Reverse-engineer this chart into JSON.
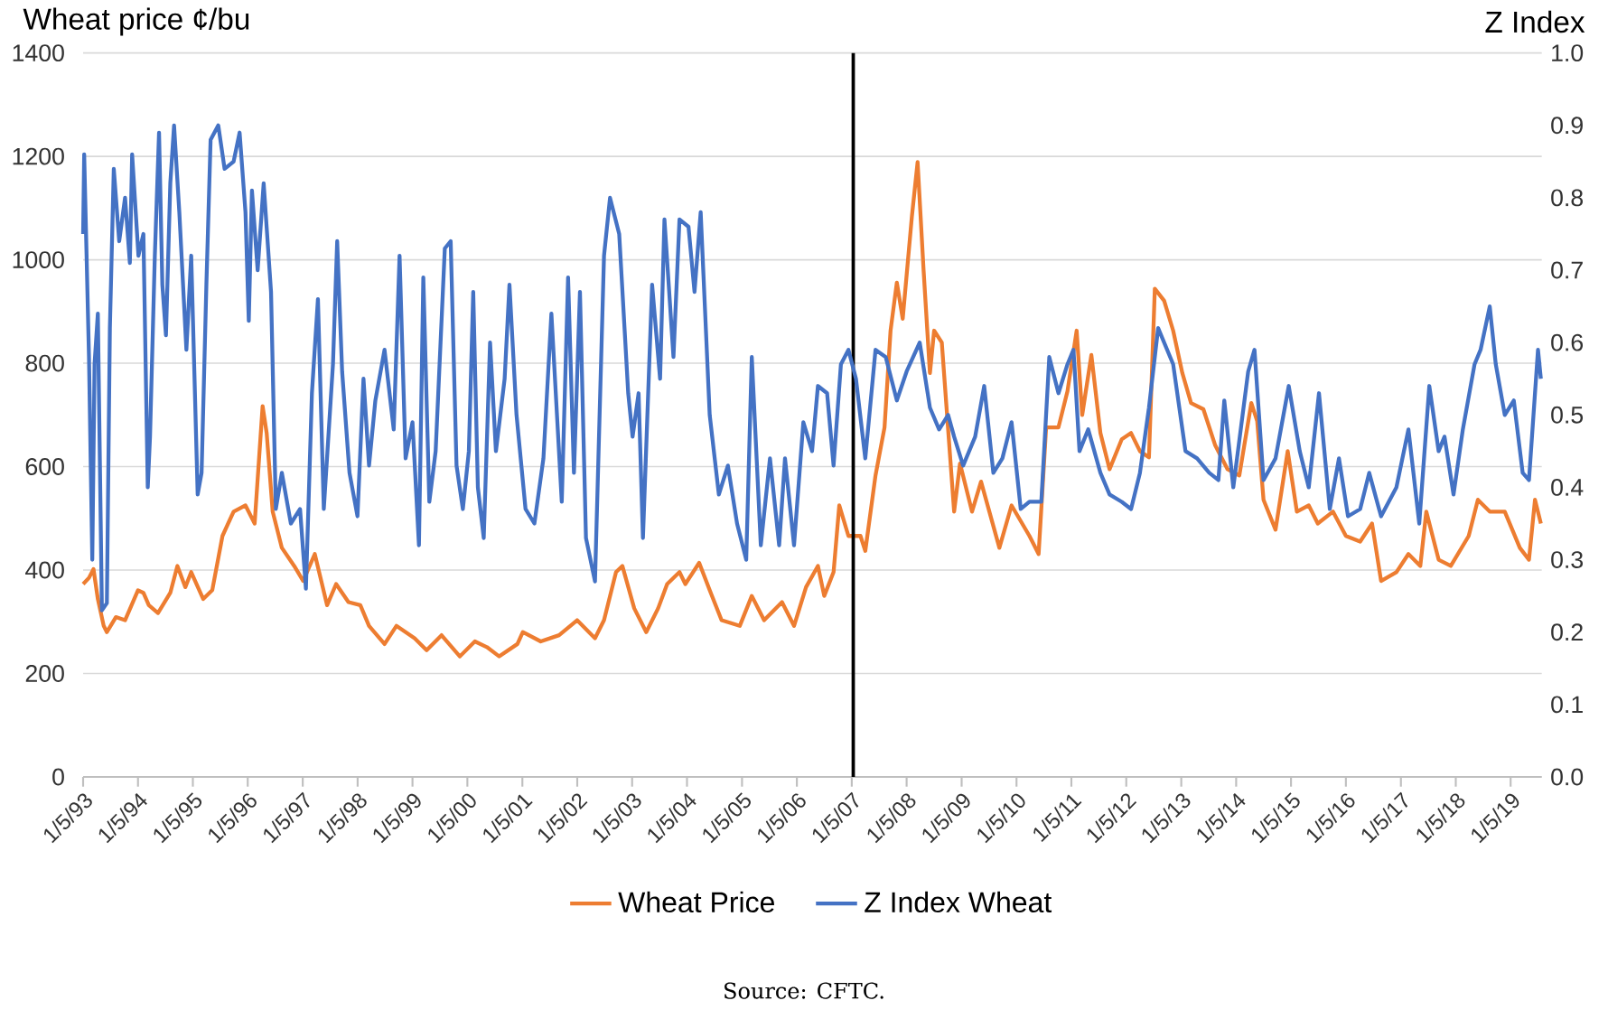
{
  "chart_data": {
    "type": "line",
    "ylabel": "Wheat price ¢/bu",
    "y2label": "Z Index",
    "annotations": [
      "Source: CFTC."
    ],
    "legend": "bottom",
    "grid": "y",
    "marker": "none",
    "line_style": "solid",
    "xlim": [
      "1993-01-05",
      "2019-07-31"
    ],
    "xticks": [
      {
        "value": "1993-01-05",
        "label": "1/5/93"
      },
      {
        "value": "1994-01-05",
        "label": "1/5/94"
      },
      {
        "value": "1995-01-05",
        "label": "1/5/95"
      },
      {
        "value": "1996-01-05",
        "label": "1/5/96"
      },
      {
        "value": "1997-01-05",
        "label": "1/5/97"
      },
      {
        "value": "1998-01-05",
        "label": "1/5/98"
      },
      {
        "value": "1999-01-05",
        "label": "1/5/99"
      },
      {
        "value": "2000-01-05",
        "label": "1/5/00"
      },
      {
        "value": "2001-01-05",
        "label": "1/5/01"
      },
      {
        "value": "2002-01-05",
        "label": "1/5/02"
      },
      {
        "value": "2003-01-05",
        "label": "1/5/03"
      },
      {
        "value": "2004-01-05",
        "label": "1/5/04"
      },
      {
        "value": "2005-01-05",
        "label": "1/5/05"
      },
      {
        "value": "2006-01-05",
        "label": "1/5/06"
      },
      {
        "value": "2007-01-05",
        "label": "1/5/07"
      },
      {
        "value": "2008-01-05",
        "label": "1/5/08"
      },
      {
        "value": "2009-01-05",
        "label": "1/5/09"
      },
      {
        "value": "2010-01-05",
        "label": "1/5/10"
      },
      {
        "value": "2011-01-05",
        "label": "1/5/11"
      },
      {
        "value": "2012-01-05",
        "label": "1/5/12"
      },
      {
        "value": "2013-01-05",
        "label": "1/5/13"
      },
      {
        "value": "2014-01-05",
        "label": "1/5/14"
      },
      {
        "value": "2015-01-05",
        "label": "1/5/15"
      },
      {
        "value": "2016-01-05",
        "label": "1/5/16"
      },
      {
        "value": "2017-01-05",
        "label": "1/5/17"
      },
      {
        "value": "2018-01-05",
        "label": "1/5/18"
      },
      {
        "value": "2019-01-05",
        "label": "1/5/19"
      }
    ],
    "ylim": [
      0,
      1400
    ],
    "yticks": [
      0,
      200,
      400,
      600,
      800,
      1000,
      1200,
      1400
    ],
    "y2lim": [
      0,
      1
    ],
    "y2ticks": [
      {
        "value": 0,
        "label": "0.0"
      },
      0.1,
      0.2,
      0.3,
      0.4,
      0.5,
      0.6,
      0.7,
      0.8,
      0.9,
      {
        "value": 1,
        "label": "1.0"
      }
    ],
    "ref_lines": [
      {
        "axis": "x",
        "value": "2007-01-15",
        "color": "#000000"
      }
    ],
    "series": [
      {
        "name": "Wheat Price",
        "color": "#ed7d31",
        "x": [
          "1993-01-05",
          "1993-02-13",
          "1993-03-15",
          "1993-04-13",
          "1993-05-22",
          "1993-06-12",
          "1993-08-11",
          "1993-10-11",
          "1994-01-05",
          "1994-02-10",
          "1994-03-18",
          "1994-05-18",
          "1994-08-08",
          "1994-09-24",
          "1994-11-16",
          "1994-12-25",
          "1995-03-15",
          "1995-05-14",
          "1995-07-21",
          "1995-10-03",
          "1995-12-21",
          "1996-02-20",
          "1996-04-13",
          "1996-05-10",
          "1996-06-19",
          "1996-08-19",
          "1996-11-09",
          "1997-01-08",
          "1997-03-26",
          "1997-06-16",
          "1997-08-15",
          "1997-11-05",
          "1998-01-23",
          "1998-03-22",
          "1998-07-03",
          "1998-09-20",
          "1999-01-19",
          "1999-04-09",
          "1999-07-17",
          "1999-11-16",
          "2000-02-24",
          "2000-05-14",
          "2000-08-04",
          "2000-12-03",
          "2001-01-08",
          "2001-05-07",
          "2001-09-06",
          "2002-01-04",
          "2002-05-03",
          "2002-07-02",
          "2002-09-20",
          "2002-11-01",
          "2003-01-19",
          "2003-04-09",
          "2003-06-27",
          "2003-08-26",
          "2003-11-16",
          "2003-12-25",
          "2004-03-26",
          "2004-06-04",
          "2004-08-22",
          "2004-12-21",
          "2005-03-11",
          "2005-06-01",
          "2005-09-28",
          "2005-12-17",
          "2006-03-07",
          "2006-05-25",
          "2006-07-06",
          "2006-09-06",
          "2006-10-14",
          "2006-12-14",
          "2007-03-04",
          "2007-04-05",
          "2007-06-12",
          "2007-08-11",
          "2007-09-20",
          "2007-11-01",
          "2007-12-10",
          "2008-02-09",
          "2008-03-18",
          "2008-04-27",
          "2008-06-08",
          "2008-07-06",
          "2008-08-26",
          "2008-11-16",
          "2008-12-25",
          "2009-03-15",
          "2009-05-14",
          "2009-09-13",
          "2009-12-03",
          "2010-04-01",
          "2010-06-01",
          "2010-07-21",
          "2010-10-11",
          "2010-12-10",
          "2011-02-09",
          "2011-03-18",
          "2011-05-18",
          "2011-07-17",
          "2011-09-16",
          "2011-12-06",
          "2012-02-06",
          "2012-04-05",
          "2012-06-04",
          "2012-07-13",
          "2012-09-13",
          "2012-11-12",
          "2013-01-12",
          "2013-03-11",
          "2013-06-01",
          "2013-08-19",
          "2013-11-09",
          "2014-01-26",
          "2014-04-16",
          "2014-05-25",
          "2014-07-06",
          "2014-09-24",
          "2014-12-14",
          "2015-02-13",
          "2015-05-03",
          "2015-07-02",
          "2015-10-11",
          "2016-01-05",
          "2016-04-09",
          "2016-06-27",
          "2016-08-26",
          "2016-12-06",
          "2017-02-24",
          "2017-05-14",
          "2017-06-23",
          "2017-09-13",
          "2017-12-03",
          "2018-04-01",
          "2018-06-01",
          "2018-08-19",
          "2018-11-27",
          "2019-03-07",
          "2019-05-07",
          "2019-06-16",
          "2019-07-25"
        ],
        "values": [
          373,
          385,
          402,
          344,
          292,
          280,
          309,
          303,
          361,
          356,
          332,
          317,
          356,
          408,
          367,
          396,
          344,
          361,
          466,
          513,
          525,
          490,
          717,
          665,
          513,
          443,
          408,
          379,
          431,
          332,
          373,
          338,
          332,
          292,
          257,
          292,
          268,
          245,
          274,
          233,
          262,
          251,
          233,
          257,
          280,
          262,
          274,
          303,
          268,
          303,
          396,
          408,
          326,
          280,
          326,
          373,
          396,
          373,
          414,
          361,
          303,
          292,
          350,
          303,
          338,
          292,
          367,
          408,
          350,
          396,
          525,
          466,
          466,
          437,
          583,
          676,
          863,
          956,
          886,
          1084,
          1189,
          979,
          781,
          863,
          840,
          513,
          606,
          513,
          571,
          443,
          525,
          466,
          431,
          676,
          676,
          746,
          863,
          700,
          816,
          665,
          595,
          653,
          665,
          630,
          618,
          944,
          921,
          863,
          781,
          723,
          711,
          641,
          595,
          583,
          723,
          688,
          536,
          478,
          630,
          513,
          525,
          490,
          513,
          466,
          455,
          490,
          379,
          396,
          431,
          408,
          513,
          420,
          408,
          466,
          536,
          513,
          513,
          443,
          420,
          536,
          490
        ]
      },
      {
        "name": "Z Index Wheat",
        "color": "#4472c4",
        "axis": "y2",
        "x": [
          "1993-01-05",
          "1993-01-12",
          "1993-02-13",
          "1993-03-07",
          "1993-03-22",
          "1993-04-13",
          "1993-05-10",
          "1993-06-12",
          "1993-07-02",
          "1993-07-28",
          "1993-09-02",
          "1993-10-11",
          "1993-11-12",
          "1993-11-27",
          "1994-01-08",
          "1994-02-10",
          "1994-03-11",
          "1994-03-26",
          "1994-04-27",
          "1994-05-25",
          "1994-06-16",
          "1994-07-10",
          "1994-08-08",
          "1994-09-02",
          "1994-10-07",
          "1994-11-23",
          "1994-12-25",
          "1995-02-06",
          "1995-03-04",
          "1995-04-05",
          "1995-05-03",
          "1995-06-23",
          "1995-08-04",
          "1995-10-03",
          "1995-11-12",
          "1995-12-21",
          "1996-01-12",
          "1996-02-02",
          "1996-03-11",
          "1996-04-20",
          "1996-06-08",
          "1996-07-10",
          "1996-08-19",
          "1996-10-18",
          "1996-12-18",
          "1997-01-26",
          "1997-03-07",
          "1997-04-16",
          "1997-05-25",
          "1997-07-25",
          "1997-08-22",
          "1997-09-24",
          "1997-11-12",
          "1998-01-04",
          "1998-02-13",
          "1998-03-22",
          "1998-05-03",
          "1998-07-03",
          "1998-09-02",
          "1998-10-11",
          "1998-11-20",
          "1999-01-05",
          "1999-02-17",
          "1999-03-18",
          "1999-04-27",
          "1999-06-08",
          "1999-08-08",
          "1999-09-16",
          "1999-10-25",
          "1999-12-06",
          "2000-01-15",
          "2000-02-13",
          "2000-03-15",
          "2000-04-23",
          "2000-06-04",
          "2000-07-13",
          "2000-09-09",
          "2000-10-11",
          "2000-11-27",
          "2001-01-26",
          "2001-03-26",
          "2001-05-25",
          "2001-07-17",
          "2001-09-24",
          "2001-11-05",
          "2001-12-14",
          "2002-01-23",
          "2002-03-04",
          "2002-05-03",
          "2002-07-02",
          "2002-08-11",
          "2002-10-11",
          "2002-12-10",
          "2003-01-08",
          "2003-02-17",
          "2003-03-18",
          "2003-05-18",
          "2003-07-10",
          "2003-08-08",
          "2003-10-07",
          "2003-11-16",
          "2004-01-15",
          "2004-02-24",
          "2004-04-05",
          "2004-06-04",
          "2004-08-04",
          "2004-10-03",
          "2004-12-03",
          "2005-02-02",
          "2005-03-11",
          "2005-05-10",
          "2005-07-10",
          "2005-09-09",
          "2005-10-18",
          "2005-12-17",
          "2006-02-17",
          "2006-04-16",
          "2006-05-25",
          "2006-07-25",
          "2006-09-06",
          "2006-10-25",
          "2006-12-14",
          "2007-02-02",
          "2007-04-05",
          "2007-06-12",
          "2007-08-19",
          "2007-11-01",
          "2008-01-05",
          "2008-04-01",
          "2008-06-08",
          "2008-08-08",
          "2008-10-07",
          "2008-11-16",
          "2009-01-15",
          "2009-04-05",
          "2009-06-04",
          "2009-08-04",
          "2009-10-03",
          "2009-12-03",
          "2010-02-02",
          "2010-04-01",
          "2010-06-19",
          "2010-08-11",
          "2010-10-11",
          "2010-12-10",
          "2011-01-19",
          "2011-02-28",
          "2011-04-27",
          "2011-07-17",
          "2011-09-16",
          "2011-12-06",
          "2012-02-06",
          "2012-04-05",
          "2012-06-04",
          "2012-08-04",
          "2012-11-12",
          "2013-02-02",
          "2013-04-20",
          "2013-07-10",
          "2013-09-09",
          "2013-10-18",
          "2013-12-17",
          "2014-03-26",
          "2014-05-07",
          "2014-07-06",
          "2014-09-24",
          "2014-12-21",
          "2015-03-04",
          "2015-05-03",
          "2015-07-10",
          "2015-09-20",
          "2015-11-20",
          "2016-01-19",
          "2016-04-09",
          "2016-06-08",
          "2016-08-26",
          "2016-12-06",
          "2017-02-24",
          "2017-05-07",
          "2017-07-13",
          "2017-09-13",
          "2017-10-22",
          "2017-12-21",
          "2018-02-21",
          "2018-05-10",
          "2018-06-19",
          "2018-08-19",
          "2018-09-28",
          "2018-11-27",
          "2019-01-26",
          "2019-03-26",
          "2019-05-07",
          "2019-07-06",
          "2019-07-25"
        ],
        "values": [
          0.75,
          0.86,
          0.58,
          0.3,
          0.57,
          0.64,
          0.23,
          0.24,
          0.62,
          0.84,
          0.74,
          0.8,
          0.71,
          0.86,
          0.72,
          0.75,
          0.4,
          0.47,
          0.72,
          0.89,
          0.68,
          0.61,
          0.82,
          0.9,
          0.78,
          0.59,
          0.72,
          0.39,
          0.42,
          0.68,
          0.88,
          0.9,
          0.84,
          0.85,
          0.89,
          0.78,
          0.63,
          0.81,
          0.7,
          0.82,
          0.67,
          0.37,
          0.42,
          0.35,
          0.37,
          0.26,
          0.53,
          0.66,
          0.37,
          0.57,
          0.74,
          0.56,
          0.42,
          0.36,
          0.55,
          0.43,
          0.52,
          0.59,
          0.48,
          0.72,
          0.44,
          0.49,
          0.32,
          0.69,
          0.38,
          0.45,
          0.73,
          0.74,
          0.43,
          0.37,
          0.45,
          0.67,
          0.4,
          0.33,
          0.6,
          0.45,
          0.55,
          0.68,
          0.5,
          0.37,
          0.35,
          0.44,
          0.64,
          0.38,
          0.69,
          0.42,
          0.67,
          0.33,
          0.27,
          0.72,
          0.8,
          0.75,
          0.53,
          0.47,
          0.53,
          0.33,
          0.68,
          0.55,
          0.77,
          0.58,
          0.77,
          0.76,
          0.67,
          0.78,
          0.5,
          0.39,
          0.43,
          0.35,
          0.3,
          0.58,
          0.32,
          0.44,
          0.32,
          0.44,
          0.32,
          0.49,
          0.45,
          0.54,
          0.53,
          0.43,
          0.57,
          0.59,
          0.55,
          0.44,
          0.59,
          0.58,
          0.52,
          0.56,
          0.6,
          0.51,
          0.48,
          0.5,
          0.47,
          0.43,
          0.47,
          0.54,
          0.42,
          0.44,
          0.49,
          0.37,
          0.38,
          0.38,
          0.58,
          0.53,
          0.57,
          0.59,
          0.45,
          0.48,
          0.42,
          0.39,
          0.38,
          0.37,
          0.42,
          0.51,
          0.62,
          0.57,
          0.45,
          0.44,
          0.42,
          0.41,
          0.52,
          0.4,
          0.56,
          0.59,
          0.41,
          0.44,
          0.54,
          0.45,
          0.4,
          0.53,
          0.37,
          0.44,
          0.36,
          0.37,
          0.42,
          0.36,
          0.4,
          0.48,
          0.35,
          0.54,
          0.45,
          0.47,
          0.39,
          0.48,
          0.57,
          0.59,
          0.65,
          0.57,
          0.5,
          0.52,
          0.42,
          0.41,
          0.59,
          0.55
        ]
      }
    ]
  }
}
